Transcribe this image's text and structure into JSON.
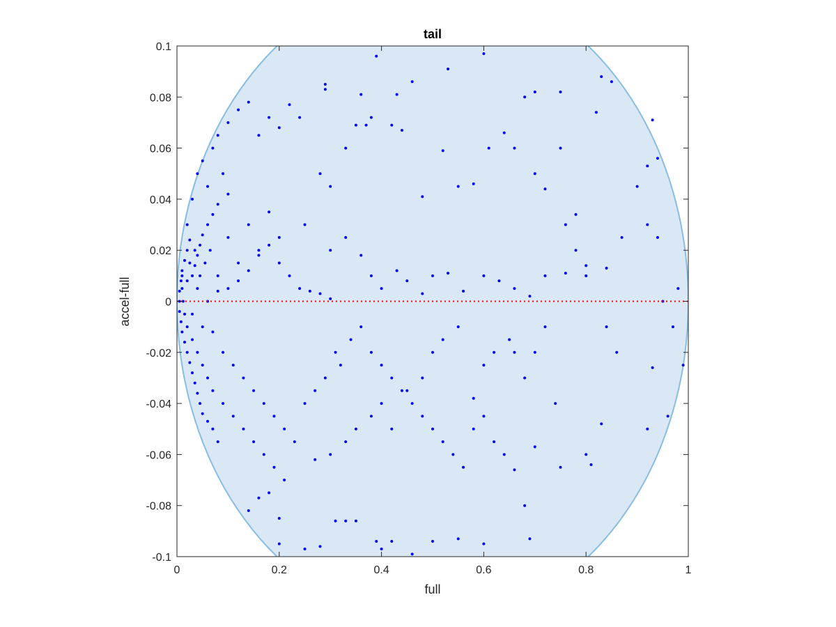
{
  "chart_data": {
    "type": "scatter",
    "title": "tail",
    "xlabel": "full",
    "ylabel": "accel-full",
    "xlim": [
      0,
      1
    ],
    "ylim": [
      -0.1,
      0.1
    ],
    "xticks": [
      "0",
      "0.2",
      "0.4",
      "0.6",
      "0.8",
      "1"
    ],
    "yticks": [
      "-0.1",
      "-0.08",
      "-0.06",
      "-0.04",
      "-0.02",
      "0",
      "0.02",
      "0.04",
      "0.06",
      "0.08",
      "0.1"
    ],
    "grid": false,
    "point_color": "#0000ff",
    "region": {
      "shape": "ellipse",
      "fill": "#d9e8f4",
      "stroke": "#88bde3",
      "center": [
        0.5,
        0
      ],
      "semi_axes": [
        0.5,
        0.126
      ]
    },
    "reference_line": {
      "y": 0,
      "style": "dotted",
      "color": "#ff0000"
    },
    "series": [
      {
        "values": [
          [
            0.01,
            0.01
          ],
          [
            0.01,
            0.005
          ],
          [
            0.012,
            0.0
          ],
          [
            0.015,
            -0.005
          ],
          [
            0.02,
            0.008
          ],
          [
            0.02,
            -0.01
          ],
          [
            0.025,
            0.015
          ],
          [
            0.03,
            -0.015
          ],
          [
            0.035,
            0.02
          ],
          [
            0.04,
            -0.02
          ],
          [
            0.045,
            0.01
          ],
          [
            0.05,
            -0.025
          ],
          [
            0.055,
            0.015
          ],
          [
            0.06,
            -0.03
          ],
          [
            0.065,
            0.02
          ],
          [
            0.07,
            -0.035
          ],
          [
            0.08,
            0.01
          ],
          [
            0.09,
            -0.04
          ],
          [
            0.1,
            0.025
          ],
          [
            0.11,
            -0.045
          ],
          [
            0.12,
            0.015
          ],
          [
            0.13,
            -0.05
          ],
          [
            0.14,
            0.03
          ],
          [
            0.15,
            -0.055
          ],
          [
            0.16,
            0.02
          ],
          [
            0.17,
            -0.06
          ],
          [
            0.18,
            0.035
          ],
          [
            0.19,
            -0.065
          ],
          [
            0.2,
            0.025
          ],
          [
            0.21,
            -0.07
          ],
          [
            0.02,
            0.03
          ],
          [
            0.03,
            0.04
          ],
          [
            0.04,
            0.05
          ],
          [
            0.05,
            0.055
          ],
          [
            0.06,
            0.045
          ],
          [
            0.07,
            0.06
          ],
          [
            0.08,
            0.065
          ],
          [
            0.09,
            0.05
          ],
          [
            0.1,
            0.07
          ],
          [
            0.12,
            0.075
          ],
          [
            0.14,
            0.078
          ],
          [
            0.16,
            0.065
          ],
          [
            0.18,
            0.072
          ],
          [
            0.2,
            0.068
          ],
          [
            0.22,
            0.077
          ],
          [
            0.24,
            0.072
          ],
          [
            0.29,
            0.085
          ],
          [
            0.29,
            0.083
          ],
          [
            0.36,
            0.081
          ],
          [
            0.39,
            0.096
          ],
          [
            0.43,
            0.081
          ],
          [
            0.46,
            0.086
          ],
          [
            0.53,
            0.091
          ],
          [
            0.6,
            0.097
          ],
          [
            0.68,
            0.08
          ],
          [
            0.7,
            0.082
          ],
          [
            0.75,
            0.082
          ],
          [
            0.83,
            0.088
          ],
          [
            0.85,
            0.086
          ],
          [
            0.82,
            0.074
          ],
          [
            0.92,
            0.053
          ],
          [
            0.94,
            0.056
          ],
          [
            0.93,
            0.071
          ],
          [
            0.9,
            0.045
          ],
          [
            0.92,
            0.03
          ],
          [
            0.94,
            0.025
          ],
          [
            0.95,
            0.0
          ],
          [
            0.97,
            -0.01
          ],
          [
            0.98,
            0.005
          ],
          [
            0.99,
            -0.025
          ],
          [
            0.96,
            -0.045
          ],
          [
            0.92,
            -0.05
          ],
          [
            0.93,
            -0.026
          ],
          [
            0.86,
            -0.02
          ],
          [
            0.84,
            -0.01
          ],
          [
            0.8,
            0.01
          ],
          [
            0.78,
            0.02
          ],
          [
            0.76,
            0.03
          ],
          [
            0.74,
            -0.04
          ],
          [
            0.75,
            -0.065
          ],
          [
            0.8,
            -0.06
          ],
          [
            0.81,
            -0.064
          ],
          [
            0.83,
            -0.048
          ],
          [
            0.7,
            -0.057
          ],
          [
            0.66,
            -0.066
          ],
          [
            0.68,
            -0.08
          ],
          [
            0.69,
            -0.093
          ],
          [
            0.6,
            -0.095
          ],
          [
            0.55,
            -0.093
          ],
          [
            0.5,
            -0.094
          ],
          [
            0.46,
            -0.099
          ],
          [
            0.42,
            -0.094
          ],
          [
            0.4,
            -0.097
          ],
          [
            0.39,
            -0.094
          ],
          [
            0.35,
            -0.086
          ],
          [
            0.33,
            -0.086
          ],
          [
            0.31,
            -0.086
          ],
          [
            0.28,
            -0.096
          ],
          [
            0.25,
            -0.097
          ],
          [
            0.2,
            -0.095
          ],
          [
            0.2,
            -0.085
          ],
          [
            0.18,
            -0.075
          ],
          [
            0.16,
            -0.077
          ],
          [
            0.14,
            -0.082
          ],
          [
            0.27,
            -0.062
          ],
          [
            0.3,
            -0.06
          ],
          [
            0.33,
            -0.055
          ],
          [
            0.35,
            -0.05
          ],
          [
            0.38,
            -0.045
          ],
          [
            0.4,
            -0.04
          ],
          [
            0.42,
            -0.05
          ],
          [
            0.45,
            -0.035
          ],
          [
            0.48,
            -0.03
          ],
          [
            0.5,
            -0.02
          ],
          [
            0.52,
            -0.015
          ],
          [
            0.55,
            -0.01
          ],
          [
            0.58,
            -0.038
          ],
          [
            0.6,
            -0.025
          ],
          [
            0.62,
            -0.02
          ],
          [
            0.65,
            -0.015
          ],
          [
            0.25,
            0.03
          ],
          [
            0.28,
            0.05
          ],
          [
            0.3,
            0.045
          ],
          [
            0.33,
            0.06
          ],
          [
            0.35,
            0.069
          ],
          [
            0.37,
            0.069
          ],
          [
            0.38,
            0.072
          ],
          [
            0.42,
            0.069
          ],
          [
            0.44,
            0.067
          ],
          [
            0.48,
            0.041
          ],
          [
            0.52,
            0.059
          ],
          [
            0.55,
            0.045
          ],
          [
            0.58,
            0.046
          ],
          [
            0.61,
            0.06
          ],
          [
            0.64,
            0.066
          ],
          [
            0.66,
            0.06
          ],
          [
            0.7,
            0.05
          ],
          [
            0.72,
            0.044
          ],
          [
            0.75,
            0.06
          ],
          [
            0.78,
            0.034
          ],
          [
            0.3,
            0.02
          ],
          [
            0.33,
            0.025
          ],
          [
            0.36,
            0.018
          ],
          [
            0.38,
            0.01
          ],
          [
            0.4,
            0.005
          ],
          [
            0.43,
            0.012
          ],
          [
            0.45,
            0.008
          ],
          [
            0.48,
            0.003
          ],
          [
            0.5,
            0.01
          ],
          [
            0.53,
            0.011
          ],
          [
            0.56,
            0.004
          ],
          [
            0.6,
            0.01
          ],
          [
            0.63,
            0.008
          ],
          [
            0.66,
            0.005
          ],
          [
            0.69,
            0.002
          ],
          [
            0.72,
            0.01
          ],
          [
            0.76,
            0.011
          ],
          [
            0.8,
            0.014
          ],
          [
            0.84,
            0.013
          ],
          [
            0.87,
            0.025
          ],
          [
            0.03,
            -0.005
          ],
          [
            0.04,
            0.005
          ],
          [
            0.05,
            -0.01
          ],
          [
            0.06,
            0.0
          ],
          [
            0.07,
            -0.012
          ],
          [
            0.08,
            0.004
          ],
          [
            0.09,
            -0.02
          ],
          [
            0.1,
            0.005
          ],
          [
            0.11,
            -0.025
          ],
          [
            0.12,
            0.008
          ],
          [
            0.13,
            -0.03
          ],
          [
            0.14,
            0.012
          ],
          [
            0.15,
            -0.035
          ],
          [
            0.16,
            0.018
          ],
          [
            0.17,
            -0.04
          ],
          [
            0.18,
            0.022
          ],
          [
            0.19,
            -0.045
          ],
          [
            0.2,
            0.015
          ],
          [
            0.21,
            -0.05
          ],
          [
            0.22,
            0.01
          ],
          [
            0.23,
            -0.055
          ],
          [
            0.24,
            0.005
          ],
          [
            0.25,
            -0.04
          ],
          [
            0.26,
            0.004
          ],
          [
            0.27,
            -0.035
          ],
          [
            0.28,
            0.003
          ],
          [
            0.29,
            -0.03
          ],
          [
            0.3,
            0.001
          ],
          [
            0.31,
            -0.02
          ],
          [
            0.32,
            -0.025
          ],
          [
            0.34,
            -0.015
          ],
          [
            0.36,
            -0.01
          ],
          [
            0.38,
            -0.02
          ],
          [
            0.4,
            -0.025
          ],
          [
            0.42,
            -0.03
          ],
          [
            0.44,
            -0.035
          ],
          [
            0.46,
            -0.04
          ],
          [
            0.48,
            -0.045
          ],
          [
            0.5,
            -0.05
          ],
          [
            0.52,
            -0.055
          ],
          [
            0.54,
            -0.06
          ],
          [
            0.56,
            -0.065
          ],
          [
            0.58,
            -0.05
          ],
          [
            0.6,
            -0.045
          ],
          [
            0.62,
            -0.055
          ],
          [
            0.64,
            -0.06
          ],
          [
            0.66,
            -0.02
          ],
          [
            0.68,
            -0.03
          ],
          [
            0.7,
            -0.02
          ],
          [
            0.72,
            -0.01
          ],
          [
            0.005,
            0.0
          ],
          [
            0.005,
            0.004
          ],
          [
            0.005,
            -0.004
          ],
          [
            0.008,
            0.008
          ],
          [
            0.008,
            -0.008
          ],
          [
            0.01,
            0.012
          ],
          [
            0.01,
            -0.012
          ],
          [
            0.015,
            0.016
          ],
          [
            0.015,
            -0.016
          ],
          [
            0.02,
            0.02
          ],
          [
            0.02,
            -0.02
          ],
          [
            0.025,
            0.024
          ],
          [
            0.025,
            -0.024
          ],
          [
            0.03,
            0.01
          ],
          [
            0.03,
            -0.028
          ],
          [
            0.035,
            0.014
          ],
          [
            0.035,
            -0.032
          ],
          [
            0.04,
            0.018
          ],
          [
            0.04,
            -0.036
          ],
          [
            0.045,
            0.022
          ],
          [
            0.045,
            -0.04
          ],
          [
            0.05,
            0.026
          ],
          [
            0.05,
            -0.044
          ],
          [
            0.06,
            0.03
          ],
          [
            0.06,
            -0.047
          ],
          [
            0.07,
            0.034
          ],
          [
            0.07,
            -0.05
          ],
          [
            0.08,
            0.038
          ],
          [
            0.08,
            -0.055
          ],
          [
            0.1,
            0.042
          ]
        ]
      }
    ]
  }
}
